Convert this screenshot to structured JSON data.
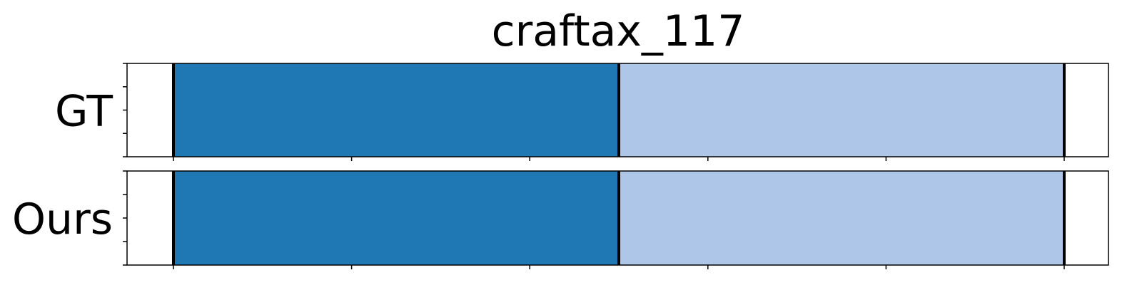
{
  "chart_data": {
    "type": "timeline",
    "title": "craftax_117",
    "xlim": [
      0,
      1100
    ],
    "xticks": [
      0,
      200,
      400,
      600,
      800,
      1000
    ],
    "tick_labels_shown": false,
    "rows": [
      {
        "label": "GT",
        "segments": [
          {
            "start": 0,
            "end": 500,
            "color": "#1f77b4"
          },
          {
            "start": 500,
            "end": 1000,
            "color": "#aec7e8"
          }
        ],
        "boundaries": [
          0,
          500,
          1000
        ]
      },
      {
        "label": "Ours",
        "segments": [
          {
            "start": 0,
            "end": 500,
            "color": "#1f77b4"
          },
          {
            "start": 500,
            "end": 1000,
            "color": "#aec7e8"
          }
        ],
        "boundaries": [
          0,
          500,
          1000
        ]
      }
    ]
  }
}
